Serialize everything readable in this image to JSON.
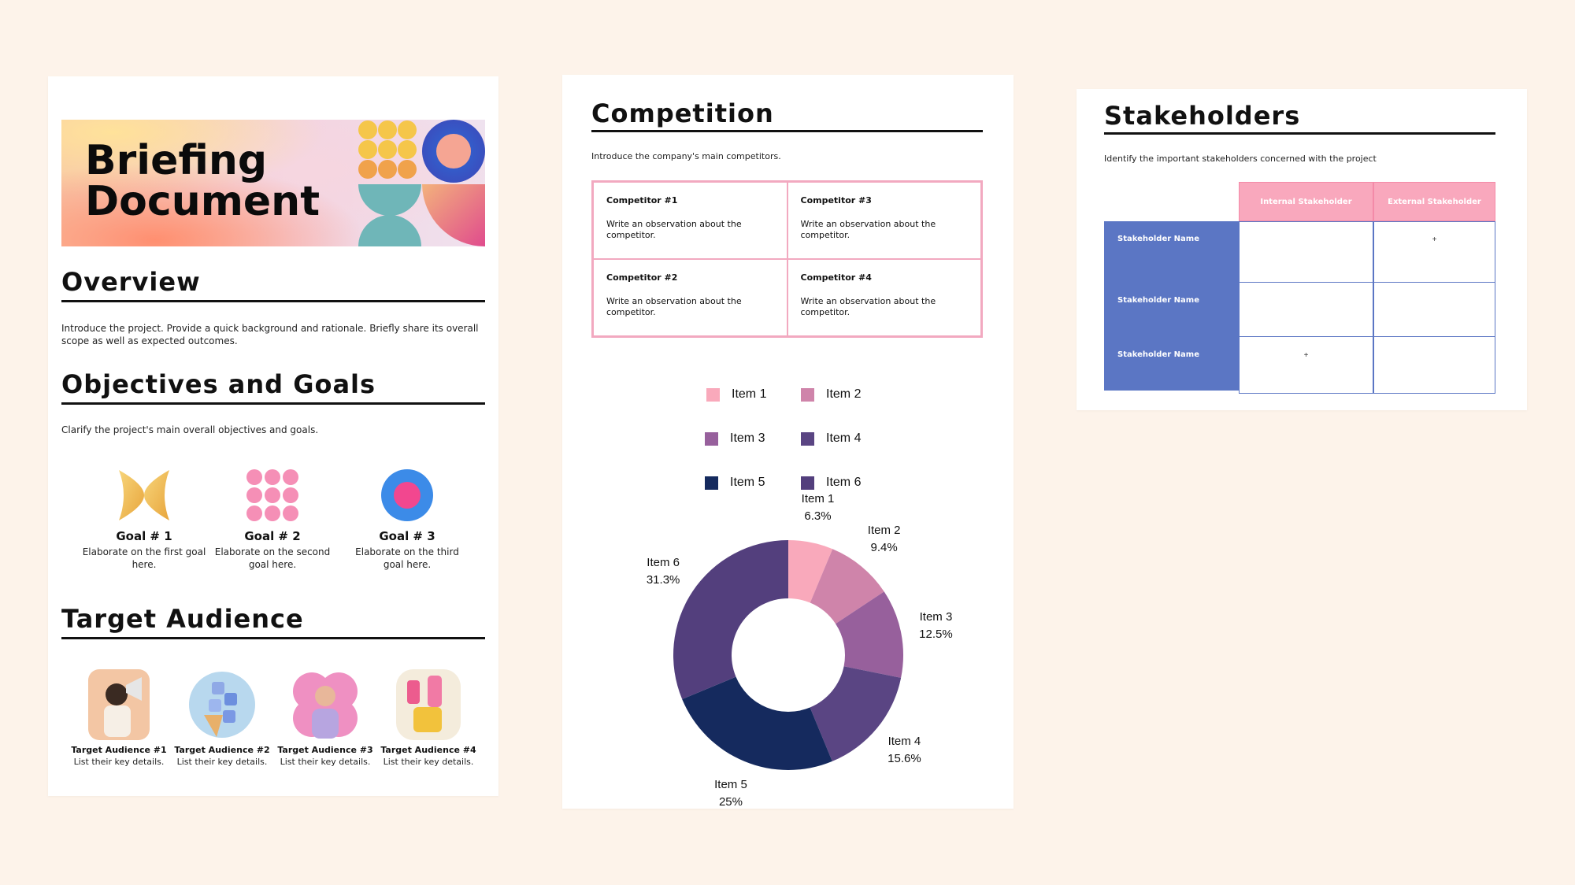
{
  "page1": {
    "hero_line1": "Briefing",
    "hero_line2": "Document",
    "overview": {
      "title": "Overview",
      "text": "Introduce the project. Provide a quick background and rationale. Briefly share its overall scope as well as expected outcomes."
    },
    "objectives": {
      "title": "Objectives and Goals",
      "text": "Clarify the project's main overall objectives and goals.",
      "goals": [
        {
          "title": "Goal # 1",
          "desc": "Elaborate on the first goal here.",
          "icon": "golden-butterfly-shape-icon"
        },
        {
          "title": "Goal # 2",
          "desc": "Elaborate on the second goal here.",
          "icon": "pink-circles-grid-icon"
        },
        {
          "title": "Goal # 3",
          "desc": "Elaborate on the third goal here.",
          "icon": "blue-pink-circle-icon"
        }
      ]
    },
    "audience": {
      "title": "Target Audience",
      "items": [
        {
          "title": "Target Audience #1",
          "desc": "List their key details."
        },
        {
          "title": "Target Audience #2",
          "desc": "List their key details."
        },
        {
          "title": "Target Audience #3",
          "desc": "List their key details."
        },
        {
          "title": "Target Audience #4",
          "desc": "List their key details."
        }
      ]
    }
  },
  "page2": {
    "title": "Competition",
    "intro": "Introduce the company's main competitors.",
    "competitors": [
      {
        "title": "Competitor #1",
        "desc": "Write an observation about the competitor."
      },
      {
        "title": "Competitor #3",
        "desc": "Write an observation about the competitor."
      },
      {
        "title": "Competitor #2",
        "desc": "Write an observation about the competitor."
      },
      {
        "title": "Competitor #4",
        "desc": "Write an observation about the competitor."
      }
    ]
  },
  "chart_data": {
    "type": "pie",
    "donut": true,
    "title": "",
    "legend_position": "top",
    "categories": [
      "Item 1",
      "Item 2",
      "Item 3",
      "Item 4",
      "Item 5",
      "Item 6"
    ],
    "values": [
      6.3,
      9.4,
      12.5,
      15.6,
      25,
      31.3
    ],
    "labels": [
      "6.3%",
      "9.4%",
      "12.5%",
      "15.6%",
      "25%",
      "31.3%"
    ],
    "colors": [
      "#f9a9bb",
      "#cf84aa",
      "#97609c",
      "#5a4583",
      "#152a5e",
      "#533f7d"
    ]
  },
  "page3": {
    "title": "Stakeholders",
    "intro": "Identify the important stakeholders concerned with the project",
    "headers": [
      "Internal Stakeholder",
      "External Stakeholder"
    ],
    "rows": [
      {
        "name": "Stakeholder Name",
        "internal": "",
        "external": "+"
      },
      {
        "name": "Stakeholder Name",
        "internal": "",
        "external": ""
      },
      {
        "name": "Stakeholder Name",
        "internal": "+",
        "external": ""
      }
    ]
  }
}
